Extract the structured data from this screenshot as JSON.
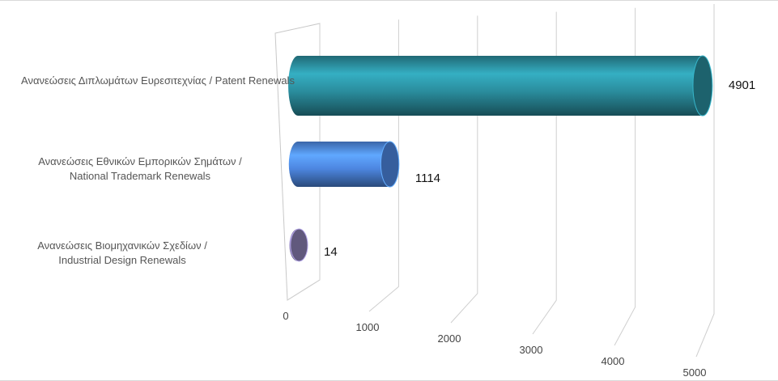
{
  "chart_data": {
    "type": "bar3d",
    "categories": [
      "Ανανεώσεις Διπλωμάτων Ευρεσιτεχνίας / Patent Renewals",
      "Ανανεώσεις Εθνικών Εμπορικών Σημάτων / National Trademark Renewals",
      "Ανανεώσεις Βιομηχανικών Σχεδίων / Industrial Design Renewals"
    ],
    "values": [
      4901,
      1114,
      14
    ],
    "colors": [
      "#2a8c9c",
      "#4d86e0",
      "#8a7fb2"
    ],
    "xlim": [
      0,
      5000
    ],
    "xticks": [
      0,
      1000,
      2000,
      3000,
      4000,
      5000
    ],
    "grid": true
  }
}
